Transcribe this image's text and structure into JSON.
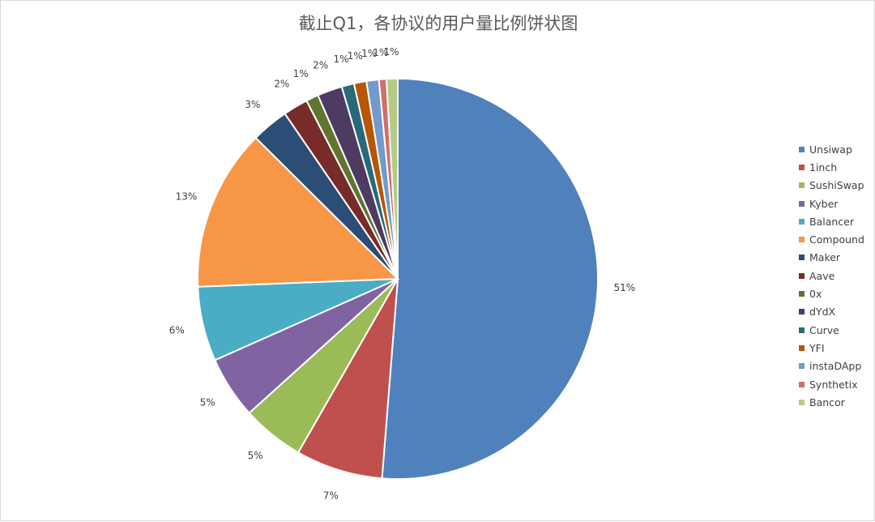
{
  "chart_data": {
    "type": "pie",
    "title": "截止Q1，各协议的用户量比例饼状图",
    "legend_position": "right",
    "slices": [
      {
        "label": "Unsiwap",
        "value": 51,
        "display": "51%",
        "color": "#4f81bd"
      },
      {
        "label": "1inch",
        "value": 7,
        "display": "7%",
        "color": "#c0504d"
      },
      {
        "label": "SushiSwap",
        "value": 5,
        "display": "5%",
        "color": "#9bbb59"
      },
      {
        "label": "Kyber",
        "value": 5,
        "display": "5%",
        "color": "#8064a2"
      },
      {
        "label": "Balancer",
        "value": 6,
        "display": "6%",
        "color": "#4bacc6"
      },
      {
        "label": "Compound",
        "value": 13,
        "display": "13%",
        "color": "#f79646"
      },
      {
        "label": "Maker",
        "value": 3,
        "display": "3%",
        "color": "#2c4d75"
      },
      {
        "label": "Aave",
        "value": 2,
        "display": "2%",
        "color": "#772c2a"
      },
      {
        "label": "0x",
        "value": 1,
        "display": "1%",
        "color": "#5f7530"
      },
      {
        "label": "dYdX",
        "value": 2,
        "display": "2%",
        "color": "#4d3b62"
      },
      {
        "label": "Curve",
        "value": 1,
        "display": "1%",
        "color": "#276a7c"
      },
      {
        "label": "YFI",
        "value": 1,
        "display": "1%",
        "color": "#b65708"
      },
      {
        "label": "instaDApp",
        "value": 1,
        "display": "1%",
        "color": "#729aca"
      },
      {
        "label": "Synthetix",
        "value": 0.6,
        "display": "1%",
        "color": "#d16f6c"
      },
      {
        "label": "Bancor",
        "value": 0.9,
        "display": "1%",
        "color": "#b5cb83"
      }
    ]
  }
}
